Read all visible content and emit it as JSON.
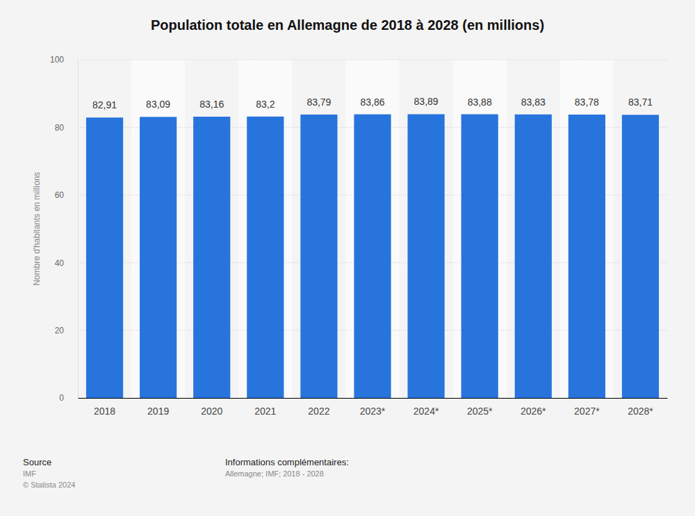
{
  "chart_data": {
    "type": "bar",
    "title": "Population totale en Allemagne de 2018 à 2028 (en millions)",
    "y_label": "Nombre d'habitants en millions",
    "categories": [
      "2018",
      "2019",
      "2020",
      "2021",
      "2022",
      "2023*",
      "2024*",
      "2025*",
      "2026*",
      "2027*",
      "2028*"
    ],
    "values": [
      82.91,
      83.09,
      83.16,
      83.2,
      83.79,
      83.86,
      83.89,
      83.88,
      83.83,
      83.78,
      83.71
    ],
    "value_labels": [
      "82,91",
      "83,09",
      "83,16",
      "83,2",
      "83,79",
      "83,86",
      "83,89",
      "83,88",
      "83,83",
      "83,78",
      "83,71"
    ],
    "data_labels": true,
    "color": "#2874dd",
    "ylim": [
      0,
      100
    ],
    "yticks": [
      0,
      20,
      40,
      60,
      80,
      100
    ],
    "grid": true,
    "source_title": "Source",
    "source": "IMF",
    "copyright": "© Statista 2024",
    "info_title": "Informations complémentaires:",
    "info": "Allemagne; IMF; 2018 - 2028"
  }
}
